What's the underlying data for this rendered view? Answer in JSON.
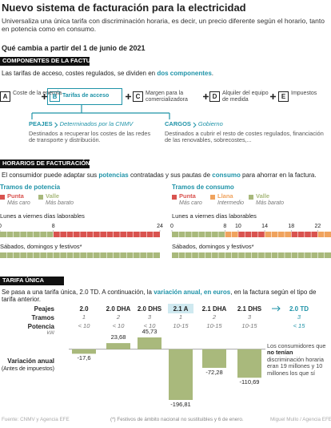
{
  "header": {
    "title": "Nuevo sistema de facturación para la electricidad",
    "subtitle": "Universaliza una única tarifa con discriminación horaria, es decir, un precio diferente según el horario, tanto en potencia como en consumo.",
    "lead": "Qué cambia a partir del 1 de junio de 2021"
  },
  "components": {
    "heading": "COMPONENTES DE LA FACTURA",
    "intro": [
      "Las tarifas de acceso, costes regulados, se dividen en ",
      "dos componentes",
      "."
    ],
    "items": [
      {
        "letter": "A",
        "label": "Coste de la energía"
      },
      {
        "letter": "B",
        "label": "Tarifas de acceso"
      },
      {
        "letter": "C",
        "label": "Margen para la comercializadora"
      },
      {
        "letter": "D",
        "label": "Alquiler del equipo de medida"
      },
      {
        "letter": "E",
        "label": "Impuestos"
      }
    ],
    "peajes": {
      "name": "PEAJES",
      "by": "Determinados por la CNMV",
      "text": "Destinados a recuperar los costes de las redes de transporte y distribución."
    },
    "cargos": {
      "name": "CARGOS",
      "by": "Gobierno",
      "text": "Destinados a cubrir el resto de costes regulados, financiación de las renovables, sobrecostes,..."
    }
  },
  "schedules": {
    "heading": "HORARIOS DE FACTURACIÓN",
    "intro": [
      "El consumidor puede adaptar sus ",
      "potencias",
      " contratadas y sus pautas de ",
      "consumo",
      " para ahorrar en la factura."
    ],
    "groups": [
      {
        "title": "Tramos de potencia",
        "legend": [
          {
            "name": "Punta",
            "note": "Más caro",
            "color": "#d9534f"
          },
          {
            "name": "Valle",
            "note": "Más barato",
            "color": "#a9b97c"
          }
        ],
        "weekday_label": "Lunes a viernes días laborables",
        "weekday_ticks": [
          0,
          8,
          24
        ],
        "weekday": [
          {
            "start": 0,
            "end": 8,
            "color": "#a9b97c"
          },
          {
            "start": 8,
            "end": 24,
            "color": "#d9534f"
          }
        ],
        "weekend_label": "Sábados, domingos y festivos*",
        "weekend": [
          {
            "start": 0,
            "end": 24,
            "color": "#a9b97c"
          }
        ]
      },
      {
        "title": "Tramos de consumo",
        "legend": [
          {
            "name": "Punta",
            "note": "Más caro",
            "color": "#d9534f"
          },
          {
            "name": "Llana",
            "note": "Intermedio",
            "color": "#f0a35e"
          },
          {
            "name": "Valle",
            "note": "Más barato",
            "color": "#a9b97c"
          }
        ],
        "weekday_label": "Lunes a viernes días laborables",
        "weekday_ticks": [
          0,
          8,
          10,
          14,
          18,
          22
        ],
        "weekday": [
          {
            "start": 0,
            "end": 8,
            "color": "#a9b97c"
          },
          {
            "start": 8,
            "end": 10,
            "color": "#f0a35e"
          },
          {
            "start": 10,
            "end": 14,
            "color": "#d9534f"
          },
          {
            "start": 14,
            "end": 18,
            "color": "#f0a35e"
          },
          {
            "start": 18,
            "end": 22,
            "color": "#d9534f"
          },
          {
            "start": 22,
            "end": 24,
            "color": "#f0a35e"
          }
        ],
        "weekend_label": "Sábados, domingos y festivos*",
        "weekend": [
          {
            "start": 0,
            "end": 24,
            "color": "#a9b97c"
          }
        ]
      }
    ]
  },
  "tariffs": {
    "heading": "TARIFA ÚNICA",
    "intro": [
      "Se pasa a una tarifa única, 2.0 TD. A continuación, la ",
      "variación anual, en euros",
      ", en la factura según el tipo de tarifa anterior."
    ],
    "row_labels": [
      "Peajes",
      "Tramos",
      "Potencia"
    ],
    "unit": "kW",
    "columns": [
      {
        "name": "2.0",
        "tramos": 1,
        "potencia": "< 10"
      },
      {
        "name": "2.0 DHA",
        "tramos": 2,
        "potencia": "< 10"
      },
      {
        "name": "2.0 DHS",
        "tramos": 3,
        "potencia": "< 10"
      },
      {
        "name": "2.1 A",
        "tramos": 1,
        "potencia": "10-15"
      },
      {
        "name": "2.1 DHA",
        "tramos": 2,
        "potencia": "10-15"
      },
      {
        "name": "2.1 DHS",
        "tramos": 3,
        "potencia": "10-15"
      }
    ],
    "target": {
      "name": "2.0 TD",
      "tramos": 3,
      "potencia": "< 15"
    },
    "variation_label": "Variación anual",
    "variation_note": "(Antes de impuestos)",
    "values": [
      -17.6,
      23.68,
      45.73,
      -196.81,
      -72.28,
      -110.69
    ],
    "value_labels": [
      "-17,6",
      "23,68",
      "45,73",
      "-196,81",
      "-72,28",
      "-110,69"
    ],
    "bar_color": "#a9b97c",
    "note": [
      "Los consumidores que ",
      "no tenían",
      " discriminación horaria eran 19 millones y 10 millones los que sí"
    ]
  },
  "footer": {
    "source": "Fuente: CNMV y Agencia EFE",
    "footnote": "(*) Festivos de ámbito nacional no sustituibles y 6 de enero.",
    "credit": "Miguel Mullo / Agencia EFE"
  }
}
